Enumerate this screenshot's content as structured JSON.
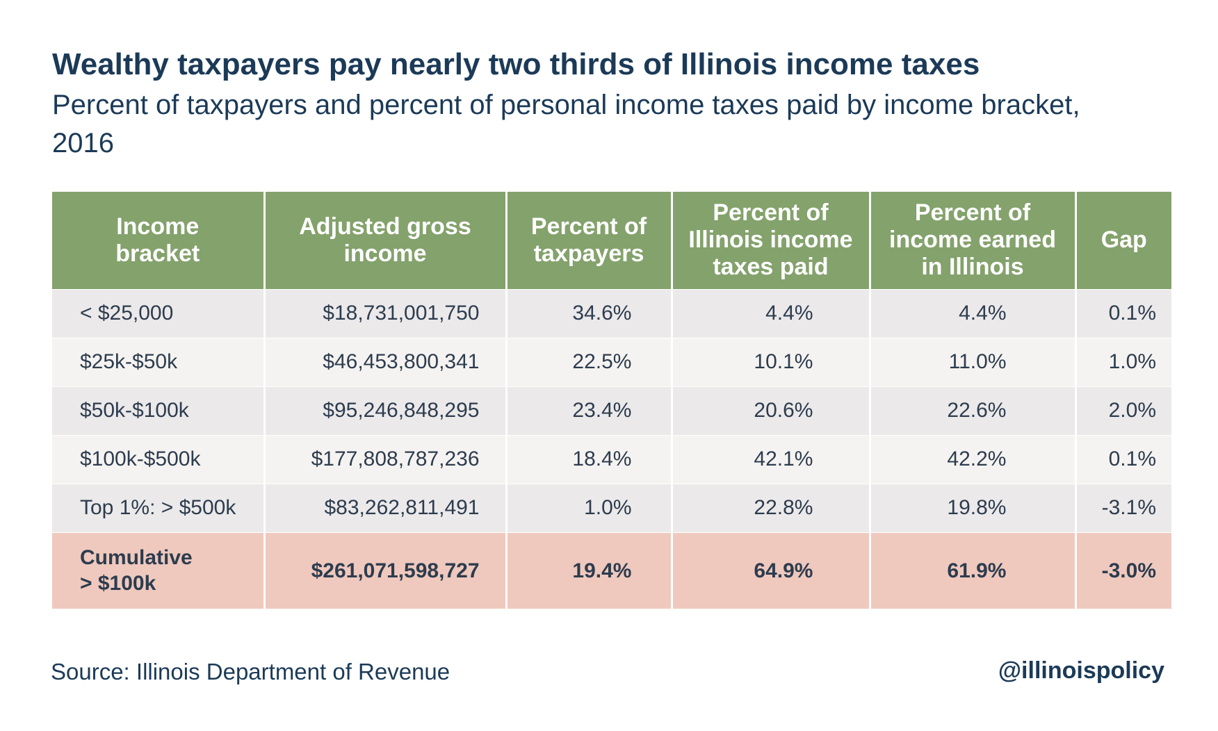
{
  "title": "Wealthy taxpayers pay nearly two thirds of Illinois income taxes",
  "subtitle": "Percent of taxpayers and percent of personal income taxes paid by income bracket, 2016",
  "source": "Source: Illinois Department of Revenue",
  "handle": "@illinoispolicy",
  "colors": {
    "header_bg": "#84a26c",
    "row_light": "#ebe9ea",
    "row_lighter": "#f5f3f1",
    "total_row_bg": "#efc9be",
    "text": "#1b3a57"
  },
  "chart_data": {
    "type": "table",
    "columns": [
      "Income\nbracket",
      "Adjusted gross\nincome",
      "Percent of\ntaxpayers",
      "Percent of\nIllinois income\ntaxes paid",
      "Percent of\nincome earned\nin Illinois",
      "Gap"
    ],
    "rows": [
      [
        "< $25,000",
        "$18,731,001,750",
        "34.6%",
        "4.4%",
        "4.4%",
        "0.1%"
      ],
      [
        "$25k-$50k",
        "$46,453,800,341",
        "22.5%",
        "10.1%",
        "11.0%",
        "1.0%"
      ],
      [
        "$50k-$100k",
        "$95,246,848,295",
        "23.4%",
        "20.6%",
        "22.6%",
        "2.0%"
      ],
      [
        "$100k-$500k",
        "$177,808,787,236",
        "18.4%",
        "42.1%",
        "42.2%",
        "0.1%"
      ],
      [
        "Top 1%: > $500k",
        "$83,262,811,491",
        "1.0%",
        "22.8%",
        "19.8%",
        "-3.1%"
      ]
    ],
    "total_row": [
      "Cumulative\n> $100k",
      "$261,071,598,727",
      "19.4%",
      "64.9%",
      "61.9%",
      "-3.0%"
    ]
  }
}
